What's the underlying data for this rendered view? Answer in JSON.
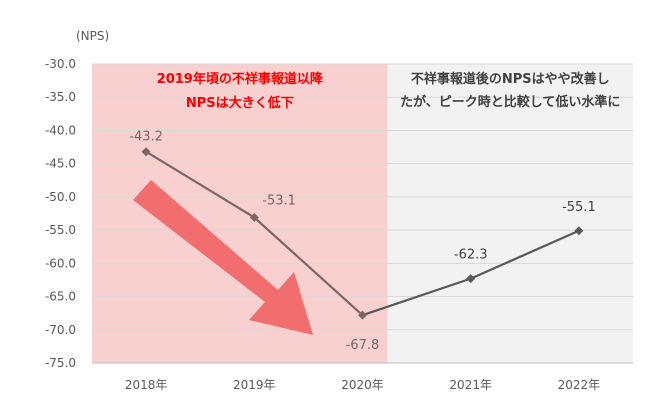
{
  "chart_data": {
    "type": "line",
    "unit_label": "(NPS)",
    "categories": [
      "2018年",
      "2019年",
      "2020年",
      "2021年",
      "2022年"
    ],
    "values": [
      -43.2,
      -53.1,
      -67.8,
      -62.3,
      -55.1
    ],
    "value_labels": [
      "-43.2",
      "-53.1",
      "-67.8",
      "-62.3",
      "-55.1"
    ],
    "ylim": [
      -75.0,
      -30.0
    ],
    "yticks": [
      -30.0,
      -35.0,
      -40.0,
      -45.0,
      -50.0,
      -55.0,
      -60.0,
      -65.0,
      -70.0,
      -75.0
    ],
    "ytick_labels": [
      "-30.0",
      "-35.0",
      "-40.0",
      "-45.0",
      "-50.0",
      "-55.0",
      "-60.0",
      "-65.0",
      "-70.0",
      "-75.0"
    ],
    "grid": true,
    "annotations": [
      {
        "region": "2018年-2020年",
        "lines": [
          "2019年頃の不祥事報道以降",
          "NPSは大きく低下"
        ],
        "color": "#ff0000",
        "shade": "#f8d0d0"
      },
      {
        "region": "2020年-2022年",
        "lines": [
          "不祥事報道後のNPSはやや改善し",
          "たが、ピーク時と比較して低い水準に"
        ],
        "color": "#404040",
        "shade": "#f2f2f2"
      }
    ],
    "colors": {
      "line_declining": "#7f6464",
      "line_recovering": "#595959",
      "arrow": "#f26d6d",
      "gridline": "#d9d9d9"
    }
  }
}
